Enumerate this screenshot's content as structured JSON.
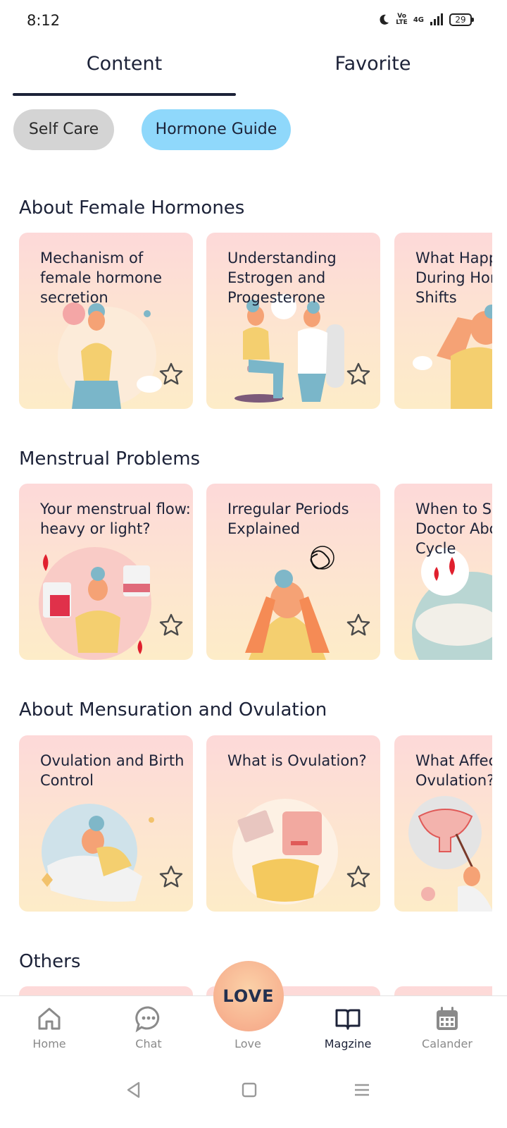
{
  "status_bar": {
    "time": "8:12",
    "battery": "29",
    "network": "4G"
  },
  "tabs": [
    {
      "label": "Content",
      "active": true
    },
    {
      "label": "Favorite",
      "active": false
    }
  ],
  "chips": [
    {
      "label": "Self Care",
      "selected": false
    },
    {
      "label": "Hormone Guide",
      "selected": true
    }
  ],
  "sections": [
    {
      "title": "About Female Hormones",
      "cards": [
        {
          "title": "Mechanism of\nfemale hormone\nsecretion"
        },
        {
          "title": "Understanding\nEstrogen and\nProgesterone"
        },
        {
          "title": "What Happ\nDuring Hor\nShifts"
        }
      ]
    },
    {
      "title": "Menstrual Problems",
      "cards": [
        {
          "title": "Your menstrual flow:\nheavy or light?"
        },
        {
          "title": "Irregular Periods\nExplained"
        },
        {
          "title": "When to Se\nDoctor Abo\nCycle"
        }
      ]
    },
    {
      "title": "About Mensuration and Ovulation",
      "cards": [
        {
          "title": "Ovulation and Birth\nControl"
        },
        {
          "title": "What is Ovulation?"
        },
        {
          "title": "What Affec\nOvulation?"
        }
      ]
    },
    {
      "title": "Others",
      "cards": []
    }
  ],
  "bottom_nav": [
    {
      "label": "Home",
      "icon": "home-icon",
      "active": false
    },
    {
      "label": "Chat",
      "icon": "chat-icon",
      "active": false
    },
    {
      "label": "Love",
      "icon": "love-icon",
      "active": false
    },
    {
      "label": "Magzine",
      "icon": "book-icon",
      "active": true
    },
    {
      "label": "Calander",
      "icon": "calendar-icon",
      "active": false
    }
  ],
  "love_button": {
    "label": "LOVE"
  },
  "colors": {
    "primary_text": "#1c2238",
    "chip_selected": "#8fd8fb",
    "chip_unselected": "#d4d4d4",
    "card_top": "#fdd9d9",
    "card_bottom": "#fdecc8",
    "accent_orange": "#f7b18f"
  }
}
